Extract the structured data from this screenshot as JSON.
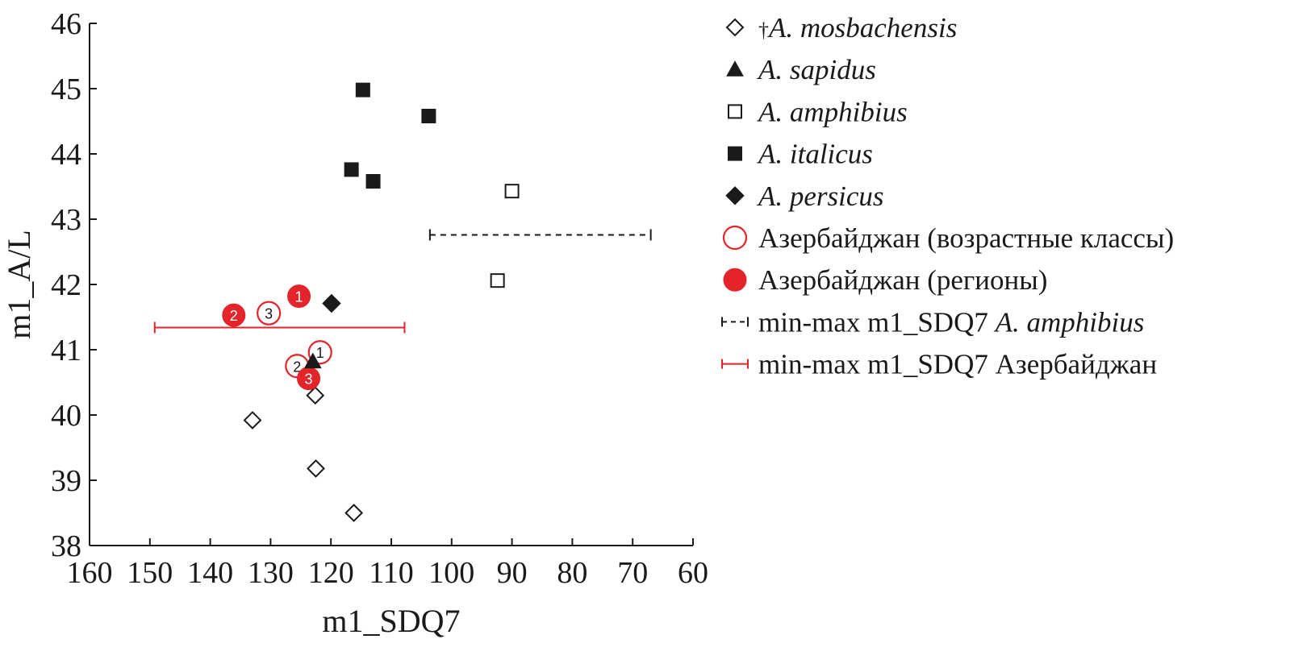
{
  "chart_data": {
    "type": "scatter",
    "title": "",
    "xlabel": "m1_SDQ7",
    "ylabel": "m1_A/L",
    "xlim": [
      160,
      60
    ],
    "ylim": [
      38,
      46
    ],
    "x_reversed": true,
    "x_ticks": [
      160,
      150,
      140,
      130,
      120,
      110,
      100,
      90,
      80,
      70,
      60
    ],
    "y_ticks": [
      38,
      39,
      40,
      41,
      42,
      43,
      44,
      45,
      46
    ],
    "x_tick_labels": [
      "160",
      "150",
      "140",
      "130",
      "120",
      "110",
      "100",
      "90",
      "80",
      "70",
      "60"
    ],
    "y_tick_labels": [
      "38",
      "39",
      "40",
      "41",
      "42",
      "43",
      "44",
      "45",
      "46"
    ],
    "legend_position": "right",
    "series": [
      {
        "name": "†A. mosbachensis",
        "dagger": "†",
        "label": "A. mosbachensis",
        "italic": true,
        "marker": "diamond-open",
        "color": "#1a1a1a",
        "points": [
          {
            "x": 133.0,
            "y": 39.92
          },
          {
            "x": 122.6,
            "y": 40.3
          },
          {
            "x": 122.5,
            "y": 39.18
          },
          {
            "x": 116.2,
            "y": 38.5
          }
        ]
      },
      {
        "name": "A. sapidus",
        "label": "A. sapidus",
        "italic": true,
        "marker": "triangle-filled",
        "color": "#1a1a1a",
        "points": [
          {
            "x": 123.0,
            "y": 40.82
          }
        ]
      },
      {
        "name": "A. amphibius",
        "label": "A. amphibius",
        "italic": true,
        "marker": "square-open",
        "color": "#1a1a1a",
        "points": [
          {
            "x": 90.0,
            "y": 43.43
          },
          {
            "x": 92.4,
            "y": 42.06
          }
        ]
      },
      {
        "name": "A. italicus",
        "label": "A. italicus",
        "italic": true,
        "marker": "square-filled",
        "color": "#1a1a1a",
        "points": [
          {
            "x": 114.7,
            "y": 44.98
          },
          {
            "x": 103.8,
            "y": 44.58
          },
          {
            "x": 116.6,
            "y": 43.76
          },
          {
            "x": 113.0,
            "y": 43.58
          }
        ]
      },
      {
        "name": "A. persicus",
        "label": "A. persicus",
        "italic": true,
        "marker": "diamond-filled",
        "color": "#1a1a1a",
        "points": [
          {
            "x": 119.9,
            "y": 41.71
          }
        ]
      },
      {
        "name": "Азербайджан (возрастные классы)",
        "label": "Азербайджан (возрастные классы)",
        "italic": false,
        "marker": "circle-open",
        "color": "#e3242b",
        "points": [
          {
            "x": 121.8,
            "y": 40.96,
            "label": "1"
          },
          {
            "x": 125.6,
            "y": 40.75,
            "label": "2"
          },
          {
            "x": 130.3,
            "y": 41.56,
            "label": "3"
          }
        ]
      },
      {
        "name": "Азербайджан (регионы)",
        "label": "Азербайджан (регионы)",
        "italic": false,
        "marker": "circle-filled",
        "color": "#e3242b",
        "points": [
          {
            "x": 125.3,
            "y": 41.82,
            "label": "1"
          },
          {
            "x": 136.1,
            "y": 41.53,
            "label": "2"
          },
          {
            "x": 123.7,
            "y": 40.56,
            "label": "3"
          }
        ]
      }
    ],
    "ranges": [
      {
        "name": "min-max m1_SDQ7 A. amphibius",
        "prefix": "min-max m1_SDQ7 ",
        "italic_part": "A. amphibius",
        "style": "dashed",
        "color": "#1a1a1a",
        "x_min": 67.0,
        "x_max": 103.6,
        "y": 42.76
      },
      {
        "name": "min-max m1_SDQ7 Азербайджан",
        "prefix": "min-max m1_SDQ7 Азербайджан",
        "italic_part": "",
        "style": "solid",
        "color": "#e3242b",
        "x_min": 107.8,
        "x_max": 149.2,
        "y": 41.34
      }
    ]
  }
}
